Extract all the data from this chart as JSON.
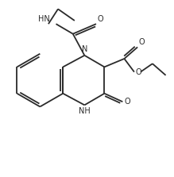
{
  "bg_color": "#ffffff",
  "line_color": "#2a2a2a",
  "line_width": 1.3,
  "font_size": 7.0,
  "figsize": [
    2.19,
    2.23
  ],
  "dpi": 100,
  "xlim": [
    -1.0,
    9.5
  ],
  "ylim": [
    -0.5,
    9.5
  ]
}
